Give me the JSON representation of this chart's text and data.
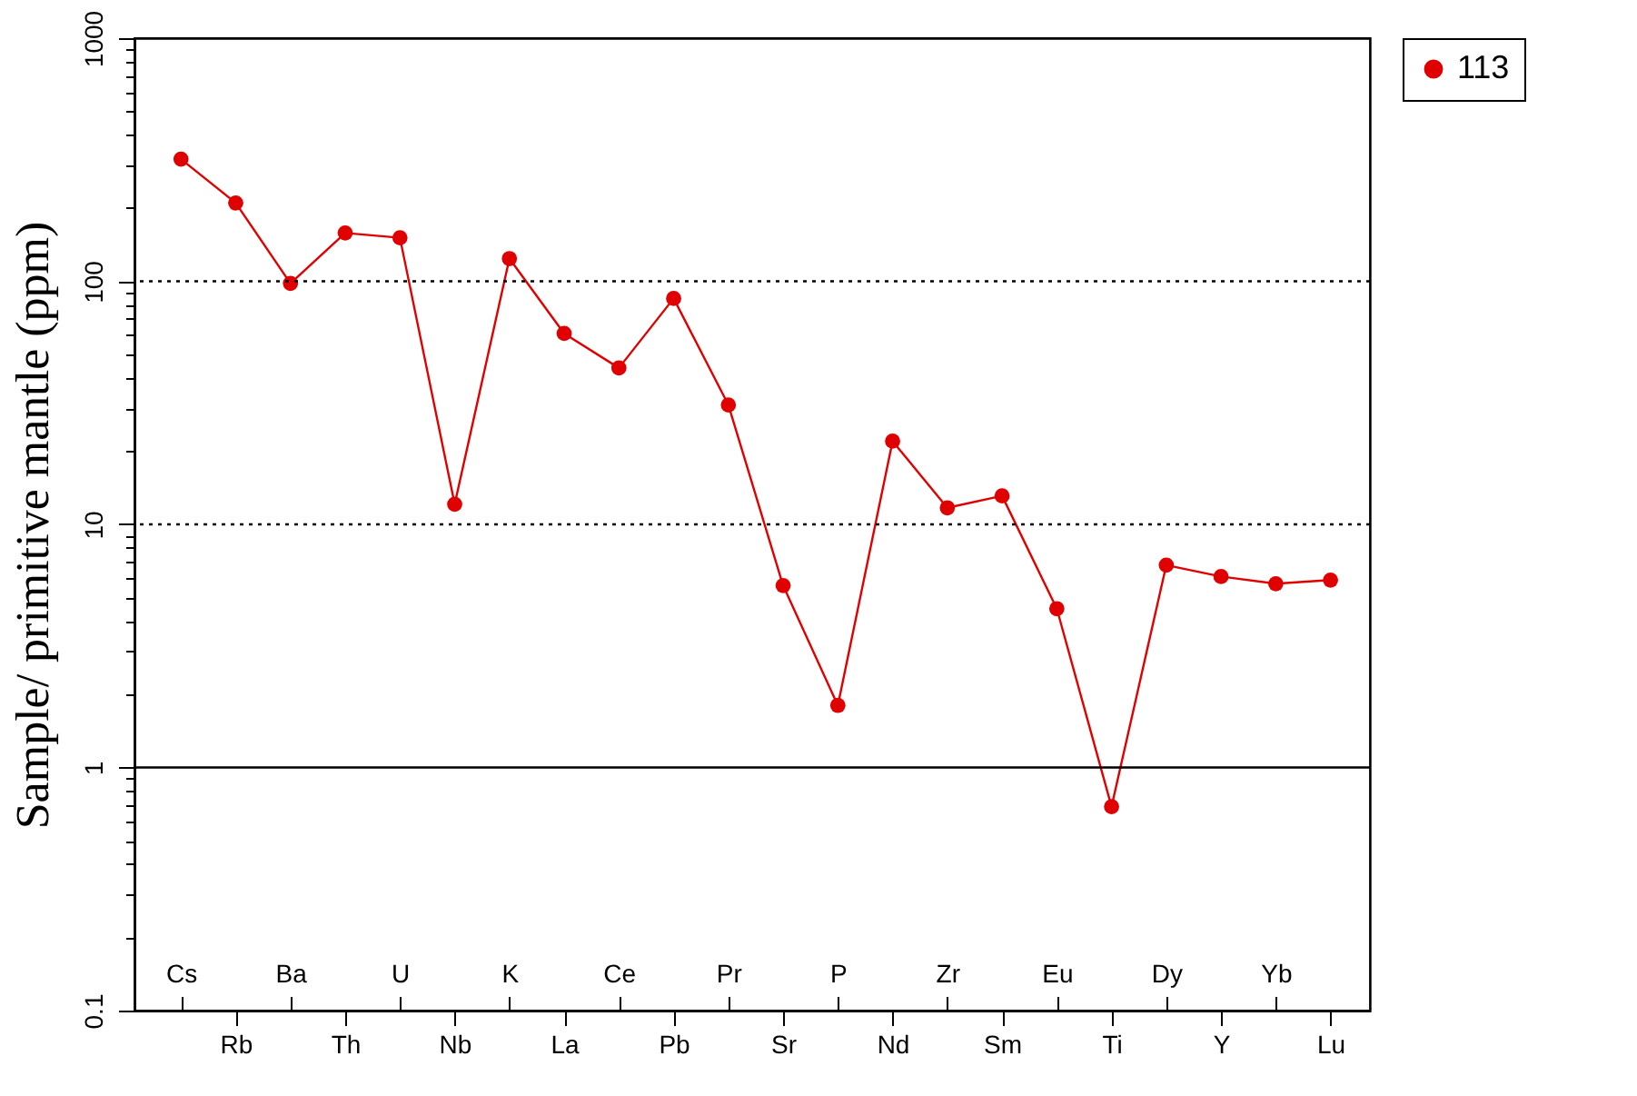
{
  "chart_data": {
    "type": "line",
    "ylabel": "Sample/ primitive mantle (ppm)",
    "categories": [
      "Cs",
      "Rb",
      "Ba",
      "Th",
      "U",
      "Nb",
      "K",
      "La",
      "Ce",
      "Pb",
      "Pr",
      "Sr",
      "P",
      "Nd",
      "Zr",
      "Sm",
      "Eu",
      "Ti",
      "Dy",
      "Y",
      "Yb",
      "Lu"
    ],
    "series": [
      {
        "name": "113",
        "color": "#e00000",
        "values": [
          318,
          210,
          98,
          158,
          151,
          12.1,
          124,
          61,
          44,
          85,
          31,
          5.6,
          1.8,
          22,
          11.7,
          13.1,
          4.5,
          0.69,
          6.8,
          6.1,
          5.7,
          5.9
        ]
      }
    ],
    "log": "y",
    "ylim": [
      0.1,
      1000
    ],
    "yticks": [
      0.1,
      {
        "value": 0.2,
        "label": null
      },
      {
        "value": 0.3,
        "label": null
      },
      {
        "value": 0.4,
        "label": null
      },
      {
        "value": 0.5,
        "label": null
      },
      {
        "value": 0.6,
        "label": null
      },
      {
        "value": 0.7,
        "label": null
      },
      {
        "value": 0.8,
        "label": null
      },
      {
        "value": 0.9,
        "label": null
      },
      1,
      {
        "value": 2,
        "label": null
      },
      {
        "value": 3,
        "label": null
      },
      {
        "value": 4,
        "label": null
      },
      {
        "value": 5,
        "label": null
      },
      {
        "value": 6,
        "label": null
      },
      {
        "value": 7,
        "label": null
      },
      {
        "value": 8,
        "label": null
      },
      {
        "value": 9,
        "label": null
      },
      10,
      {
        "value": 20,
        "label": null
      },
      {
        "value": 30,
        "label": null
      },
      {
        "value": 40,
        "label": null
      },
      {
        "value": 50,
        "label": null
      },
      {
        "value": 60,
        "label": null
      },
      {
        "value": 70,
        "label": null
      },
      {
        "value": 80,
        "label": null
      },
      {
        "value": 90,
        "label": null
      },
      100,
      {
        "value": 200,
        "label": null
      },
      {
        "value": 300,
        "label": null
      },
      {
        "value": 400,
        "label": null
      },
      {
        "value": 500,
        "label": null
      },
      {
        "value": 600,
        "label": null
      },
      {
        "value": 700,
        "label": null
      },
      {
        "value": 800,
        "label": null
      },
      {
        "value": 900,
        "label": null
      },
      1000
    ],
    "ref_lines": [
      {
        "axis": "y",
        "value": 100,
        "color": "#000000",
        "line_style": "dotted"
      },
      {
        "axis": "y",
        "value": 10,
        "color": "#000000",
        "line_style": "dotted"
      },
      {
        "axis": "y",
        "value": 1,
        "color": "#000000",
        "line_style": "solid"
      }
    ],
    "grid": false,
    "legend": "right",
    "marker": "circle",
    "line_style": "solid"
  }
}
